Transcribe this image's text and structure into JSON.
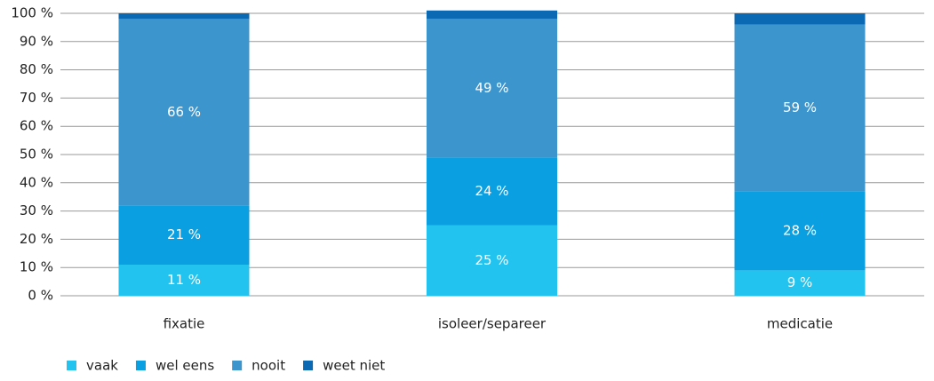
{
  "chart_data": {
    "type": "stacked_bar",
    "categories": [
      "fixatie",
      "isoleer/separeer",
      "medicatie"
    ],
    "series": [
      {
        "name": "vaak",
        "color": "#22c3ee",
        "values": [
          11,
          25,
          9
        ],
        "value_labels": [
          "11 %",
          "25 %",
          "9 %"
        ]
      },
      {
        "name": "wel eens",
        "color": "#0a9fe0",
        "values": [
          21,
          24,
          28
        ],
        "value_labels": [
          "21 %",
          "24 %",
          "28 %"
        ]
      },
      {
        "name": "nooit",
        "color": "#3d95cd",
        "values": [
          66,
          49,
          59
        ],
        "value_labels": [
          "66 %",
          "49 %",
          "59 %"
        ]
      },
      {
        "name": "weet niet",
        "color": "#0b68b2",
        "values": [
          2,
          3,
          4
        ]
      }
    ],
    "ylim": [
      0,
      100
    ],
    "yticks": [
      {
        "value": 0,
        "label": "0 %"
      },
      {
        "value": 10,
        "label": "10 %"
      },
      {
        "value": 20,
        "label": "20 %"
      },
      {
        "value": 30,
        "label": "30 %"
      },
      {
        "value": 40,
        "label": "40 %"
      },
      {
        "value": 50,
        "label": "50 %"
      },
      {
        "value": 60,
        "label": "60 %"
      },
      {
        "value": 70,
        "label": "70 %"
      },
      {
        "value": 80,
        "label": "80 %"
      },
      {
        "value": 90,
        "label": "90 %"
      },
      {
        "value": 100,
        "label": "100 %"
      }
    ],
    "grid": true,
    "legend": "bottom-left"
  }
}
